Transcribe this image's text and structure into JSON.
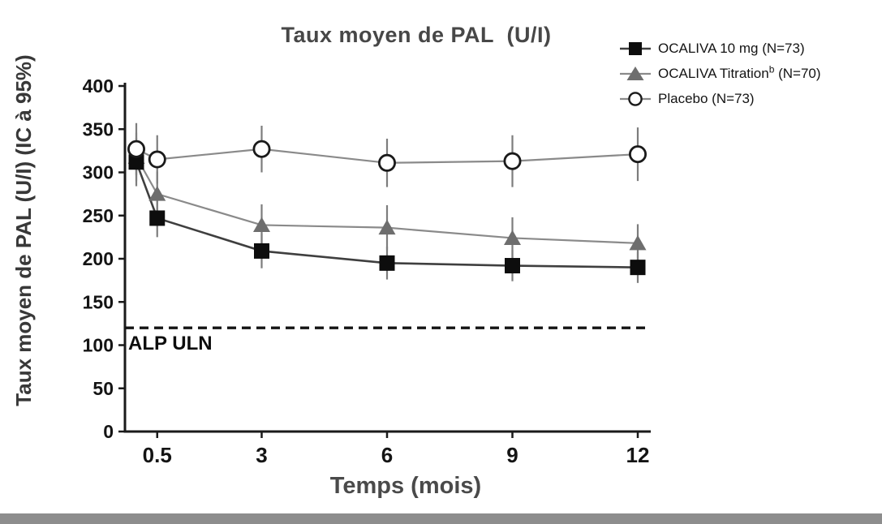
{
  "figure": {
    "title": "Taux moyen de PAL  (U/I)",
    "x_axis_label": "Temps (mois)",
    "y_axis_label": "Taux moyen de PAL (U/I) (IC à 95%)"
  },
  "legend": {
    "items": [
      {
        "label": "OCALIVA 10 mg (N=73)",
        "marker": "filled-square-icon"
      },
      {
        "label_pre": "OCALIVA Titration",
        "label_sup": "b",
        "label_post": " (N=70)",
        "marker": "filled-triangle-icon"
      },
      {
        "label": "Placebo (N=73)",
        "marker": "open-circle-icon"
      }
    ]
  },
  "chart_data": {
    "type": "line",
    "title": "Taux moyen de PAL (U/I)",
    "xlabel": "Temps (mois)",
    "ylabel": "Taux moyen de PAL (U/I) (IC à 95%)",
    "x": [
      0,
      0.5,
      3,
      6,
      9,
      12
    ],
    "x_ticks": [
      "0.5",
      "3",
      "6",
      "9",
      "12"
    ],
    "x_tick_values": [
      0.5,
      3,
      6,
      9,
      12
    ],
    "y_ticks": [
      "0",
      "50",
      "100",
      "150",
      "200",
      "250",
      "300",
      "350",
      "400"
    ],
    "y_tick_values": [
      0,
      50,
      100,
      150,
      200,
      250,
      300,
      350,
      400
    ],
    "ylim": [
      0,
      400
    ],
    "xlim": [
      0,
      12.4
    ],
    "grid": false,
    "legend_position": "top-right",
    "error_bars": "95% CI",
    "series": [
      {
        "name": "OCALIVA 10 mg (N=73)",
        "marker": "square",
        "marker_color": "#0d0d0d",
        "line_color": "#3f3f3f",
        "values": [
          312,
          247,
          209,
          195,
          192,
          190
        ],
        "ci_half_width": [
          28,
          22,
          20,
          19,
          18,
          18
        ]
      },
      {
        "name": "OCALIVA Titration b (N=70)",
        "marker": "triangle",
        "marker_color": "#6e6e6e",
        "line_color": "#8a8a8a",
        "values": [
          318,
          275,
          239,
          236,
          224,
          218
        ],
        "ci_half_width": [
          28,
          26,
          24,
          26,
          24,
          22
        ]
      },
      {
        "name": "Placebo (N=73)",
        "marker": "circle",
        "marker_color": "#ffffff",
        "marker_stroke": "#1a1a1a",
        "line_color": "#8a8a8a",
        "values": [
          327,
          315,
          327,
          311,
          313,
          321
        ],
        "ci_half_width": [
          30,
          28,
          27,
          28,
          30,
          31
        ]
      }
    ],
    "reference_line": {
      "label": "ALP ULN",
      "value": 120,
      "style": "dashed",
      "color": "#141414"
    }
  },
  "colors": {
    "axis": "#1a1a1a",
    "error_bar": "#7d7d7d",
    "title_text": "#474747",
    "bottom_bar": "#8d8d8d"
  }
}
